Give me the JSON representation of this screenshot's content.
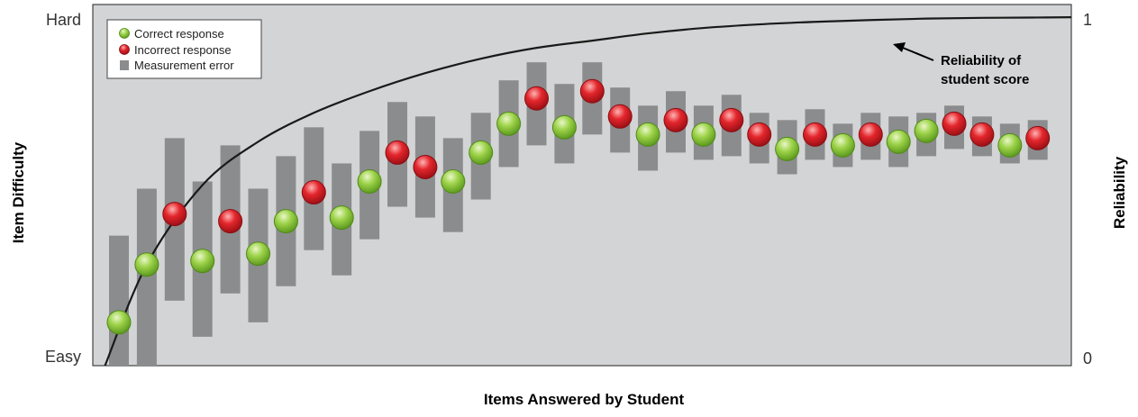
{
  "chart_data": {
    "type": "scatter",
    "title": "",
    "xlabel": "Items Answered by Student",
    "ylabel_left": "Item Difficulty",
    "ylabel_right": "Reliability",
    "y_left_ticks": [
      "Easy",
      "Hard"
    ],
    "y_right_ticks": [
      "0",
      "1"
    ],
    "ylim": [
      0,
      1
    ],
    "legend": {
      "placement": "top-left",
      "entries": [
        {
          "label": "Correct response",
          "icon": "green-dot-icon"
        },
        {
          "label": "Incorrect response",
          "icon": "red-dot-icon"
        },
        {
          "label": "Measurement error",
          "icon": "gray-bar-icon"
        }
      ]
    },
    "annotation": {
      "lines": [
        "Reliability of",
        "student score"
      ],
      "arrow": true
    },
    "colors": {
      "plot_bg": "#d3d4d5",
      "error_bar": "#8b8c8e",
      "correct": "#8cc63e",
      "incorrect": "#e0242b",
      "curve": "#1a1a1a"
    },
    "responses": [
      {
        "item": 1,
        "difficulty": 0.12,
        "error_low": -0.1,
        "error_high": 0.36,
        "correct": true
      },
      {
        "item": 2,
        "difficulty": 0.28,
        "error_low": -0.1,
        "error_high": 0.49,
        "correct": true
      },
      {
        "item": 3,
        "difficulty": 0.42,
        "error_low": 0.18,
        "error_high": 0.63,
        "correct": false
      },
      {
        "item": 4,
        "difficulty": 0.29,
        "error_low": 0.08,
        "error_high": 0.51,
        "correct": true
      },
      {
        "item": 5,
        "difficulty": 0.4,
        "error_low": 0.2,
        "error_high": 0.61,
        "correct": false
      },
      {
        "item": 6,
        "difficulty": 0.31,
        "error_low": 0.12,
        "error_high": 0.49,
        "correct": true
      },
      {
        "item": 7,
        "difficulty": 0.4,
        "error_low": 0.22,
        "error_high": 0.58,
        "correct": true
      },
      {
        "item": 8,
        "difficulty": 0.48,
        "error_low": 0.32,
        "error_high": 0.66,
        "correct": false
      },
      {
        "item": 9,
        "difficulty": 0.41,
        "error_low": 0.25,
        "error_high": 0.56,
        "correct": true
      },
      {
        "item": 10,
        "difficulty": 0.51,
        "error_low": 0.35,
        "error_high": 0.65,
        "correct": true
      },
      {
        "item": 11,
        "difficulty": 0.59,
        "error_low": 0.44,
        "error_high": 0.73,
        "correct": false
      },
      {
        "item": 12,
        "difficulty": 0.55,
        "error_low": 0.41,
        "error_high": 0.69,
        "correct": false
      },
      {
        "item": 13,
        "difficulty": 0.51,
        "error_low": 0.37,
        "error_high": 0.63,
        "correct": true
      },
      {
        "item": 14,
        "difficulty": 0.59,
        "error_low": 0.46,
        "error_high": 0.7,
        "correct": true
      },
      {
        "item": 15,
        "difficulty": 0.67,
        "error_low": 0.55,
        "error_high": 0.79,
        "correct": true
      },
      {
        "item": 16,
        "difficulty": 0.74,
        "error_low": 0.61,
        "error_high": 0.84,
        "correct": false
      },
      {
        "item": 17,
        "difficulty": 0.66,
        "error_low": 0.56,
        "error_high": 0.78,
        "correct": true
      },
      {
        "item": 18,
        "difficulty": 0.76,
        "error_low": 0.64,
        "error_high": 0.84,
        "correct": false
      },
      {
        "item": 19,
        "difficulty": 0.69,
        "error_low": 0.59,
        "error_high": 0.77,
        "correct": false
      },
      {
        "item": 20,
        "difficulty": 0.64,
        "error_low": 0.54,
        "error_high": 0.72,
        "correct": true
      },
      {
        "item": 21,
        "difficulty": 0.68,
        "error_low": 0.59,
        "error_high": 0.76,
        "correct": false
      },
      {
        "item": 22,
        "difficulty": 0.64,
        "error_low": 0.57,
        "error_high": 0.72,
        "correct": true
      },
      {
        "item": 23,
        "difficulty": 0.68,
        "error_low": 0.58,
        "error_high": 0.75,
        "correct": false
      },
      {
        "item": 24,
        "difficulty": 0.64,
        "error_low": 0.56,
        "error_high": 0.7,
        "correct": false
      },
      {
        "item": 25,
        "difficulty": 0.6,
        "error_low": 0.53,
        "error_high": 0.68,
        "correct": true
      },
      {
        "item": 26,
        "difficulty": 0.64,
        "error_low": 0.57,
        "error_high": 0.71,
        "correct": false
      },
      {
        "item": 27,
        "difficulty": 0.61,
        "error_low": 0.55,
        "error_high": 0.67,
        "correct": true
      },
      {
        "item": 28,
        "difficulty": 0.64,
        "error_low": 0.57,
        "error_high": 0.7,
        "correct": false
      },
      {
        "item": 29,
        "difficulty": 0.62,
        "error_low": 0.55,
        "error_high": 0.69,
        "correct": true
      },
      {
        "item": 30,
        "difficulty": 0.65,
        "error_low": 0.58,
        "error_high": 0.7,
        "correct": true
      },
      {
        "item": 31,
        "difficulty": 0.67,
        "error_low": 0.6,
        "error_high": 0.72,
        "correct": false
      },
      {
        "item": 32,
        "difficulty": 0.64,
        "error_low": 0.58,
        "error_high": 0.69,
        "correct": false
      },
      {
        "item": 33,
        "difficulty": 0.61,
        "error_low": 0.56,
        "error_high": 0.67,
        "correct": true
      },
      {
        "item": 34,
        "difficulty": 0.63,
        "error_low": 0.57,
        "error_high": 0.68,
        "correct": false
      }
    ],
    "reliability_curve": {
      "x": [
        0.5,
        2,
        4,
        6,
        8,
        10,
        12,
        14,
        16,
        18,
        20,
        22,
        24,
        26,
        28,
        30,
        32,
        34,
        35.5
      ],
      "y": [
        0.0,
        0.28,
        0.5,
        0.62,
        0.7,
        0.76,
        0.81,
        0.85,
        0.88,
        0.9,
        0.92,
        0.935,
        0.945,
        0.952,
        0.957,
        0.961,
        0.963,
        0.964,
        0.965
      ]
    }
  }
}
